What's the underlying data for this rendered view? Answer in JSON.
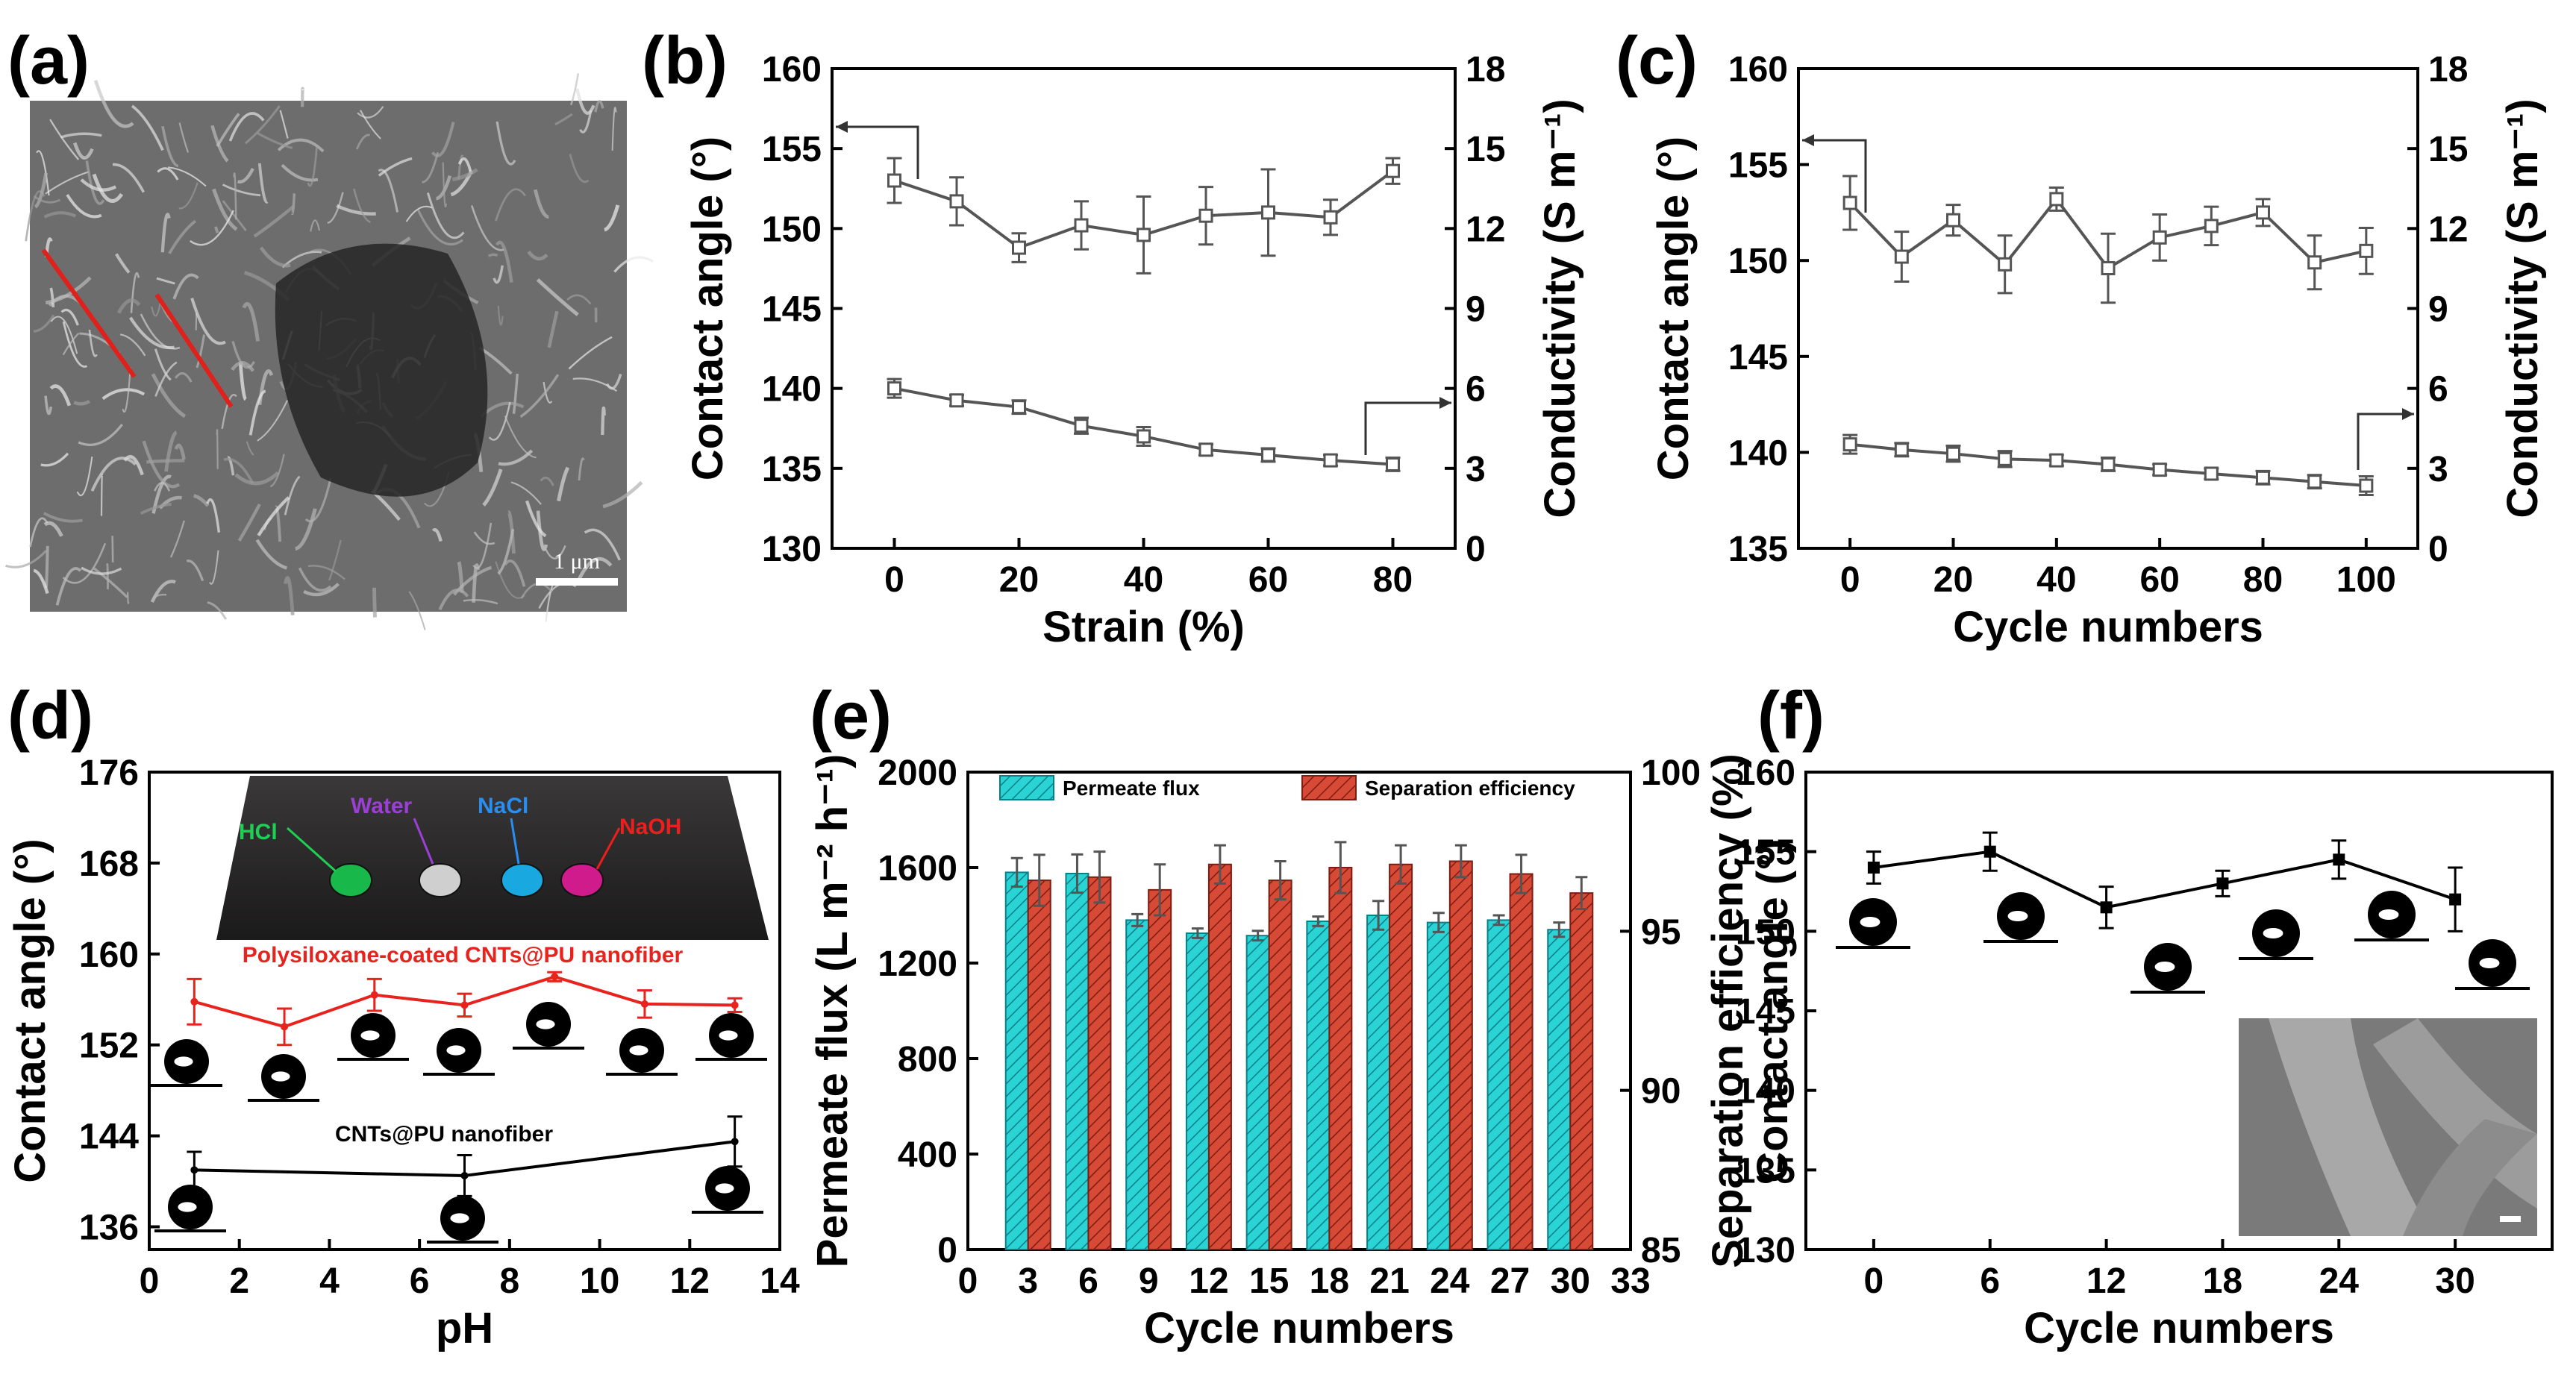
{
  "panel_labels": [
    "(a)",
    "(b)",
    "(c)",
    "(d)",
    "(e)",
    "(f)"
  ],
  "sem_scale_text": "1 μm",
  "chart_data": [
    {
      "id": "b",
      "type": "line",
      "xlabel": "Strain (%)",
      "ylabel": "Contact angle (°)",
      "y2label": "Conductivity (S m⁻¹)",
      "xlim": [
        -10,
        90
      ],
      "ylim": [
        130,
        160
      ],
      "y2lim": [
        0,
        18
      ],
      "xticks": [
        0,
        20,
        40,
        60,
        80
      ],
      "yticks": [
        130,
        135,
        140,
        145,
        150,
        155,
        160
      ],
      "y2ticks": [
        0,
        3,
        6,
        9,
        12,
        15,
        18
      ],
      "series": [
        {
          "name": "Contact angle",
          "axis": "left",
          "marker": "open-square",
          "x": [
            0,
            10,
            20,
            30,
            40,
            50,
            60,
            70,
            80
          ],
          "y": [
            153.0,
            151.7,
            148.8,
            150.2,
            149.6,
            150.8,
            151.0,
            150.7,
            153.6
          ],
          "err": [
            1.4,
            1.5,
            0.9,
            1.5,
            2.4,
            1.8,
            2.7,
            1.1,
            0.8
          ]
        },
        {
          "name": "Conductivity",
          "axis": "right",
          "marker": "open-square",
          "x": [
            0,
            10,
            20,
            30,
            40,
            50,
            60,
            70,
            80
          ],
          "y": [
            6.0,
            5.55,
            5.3,
            4.6,
            4.2,
            3.7,
            3.5,
            3.3,
            3.15
          ],
          "err": [
            0.35,
            0.2,
            0.25,
            0.3,
            0.35,
            0.2,
            0.25,
            0.2,
            0.25
          ]
        }
      ]
    },
    {
      "id": "c",
      "type": "line",
      "xlabel": "Cycle numbers",
      "ylabel": "Contact angle (°)",
      "y2label": "Conductivity (S m⁻¹)",
      "xlim": [
        -10,
        110
      ],
      "ylim": [
        135,
        160
      ],
      "y2lim": [
        0,
        18
      ],
      "xticks": [
        0,
        20,
        40,
        60,
        80,
        100
      ],
      "yticks": [
        135,
        140,
        145,
        150,
        155,
        160
      ],
      "y2ticks": [
        0,
        3,
        6,
        9,
        12,
        15,
        18
      ],
      "series": [
        {
          "name": "Contact angle",
          "axis": "left",
          "marker": "open-square",
          "x": [
            0,
            10,
            20,
            30,
            40,
            50,
            60,
            70,
            80,
            90,
            100
          ],
          "y": [
            153.0,
            150.2,
            152.1,
            149.8,
            153.2,
            149.6,
            151.2,
            151.8,
            152.5,
            149.9,
            150.5
          ],
          "err": [
            1.4,
            1.3,
            0.8,
            1.5,
            0.6,
            1.8,
            1.2,
            1.0,
            0.7,
            1.4,
            1.2
          ]
        },
        {
          "name": "Conductivity",
          "axis": "right",
          "marker": "open-square",
          "x": [
            0,
            10,
            20,
            30,
            40,
            50,
            60,
            70,
            80,
            90,
            100
          ],
          "y": [
            3.9,
            3.7,
            3.55,
            3.35,
            3.3,
            3.15,
            2.95,
            2.8,
            2.65,
            2.5,
            2.35
          ],
          "err": [
            0.35,
            0.25,
            0.3,
            0.3,
            0.2,
            0.25,
            0.2,
            0.2,
            0.25,
            0.25,
            0.35
          ]
        }
      ]
    },
    {
      "id": "d",
      "type": "line",
      "xlabel": "pH",
      "ylabel": "Contact angle (°)",
      "xlim": [
        0,
        14
      ],
      "ylim": [
        134,
        176
      ],
      "xticks": [
        0,
        2,
        4,
        6,
        8,
        10,
        12,
        14
      ],
      "yticks": [
        136,
        144,
        152,
        160,
        168,
        176
      ],
      "inset_labels": [
        "HCl",
        "Water",
        "NaCl",
        "NaOH"
      ],
      "series": [
        {
          "name": "Polysiloxane-coated CNTs@PU nanofiber",
          "color": "#e8231d",
          "x": [
            1,
            3,
            5,
            7,
            9,
            11,
            13
          ],
          "y": [
            155.8,
            153.6,
            156.4,
            155.5,
            158.0,
            155.6,
            155.5
          ],
          "err": [
            2.0,
            1.6,
            1.4,
            1.0,
            0.4,
            1.2,
            0.6
          ]
        },
        {
          "name": "CNTs@PU nanofiber",
          "color": "#000000",
          "x": [
            1,
            7,
            13
          ],
          "y": [
            141.0,
            140.5,
            143.5
          ],
          "err": [
            1.6,
            1.8,
            2.2
          ]
        }
      ]
    },
    {
      "id": "e",
      "type": "bar",
      "xlabel": "Cycle numbers",
      "ylabel": "Permeate flux (L m⁻² h⁻¹)",
      "y2label": "Separation efficiency (%)",
      "xlim": [
        0,
        33
      ],
      "ylim": [
        0,
        2000
      ],
      "y2lim": [
        85,
        100
      ],
      "xticks": [
        0,
        3,
        6,
        9,
        12,
        15,
        18,
        21,
        24,
        27,
        30,
        33
      ],
      "yticks": [
        0,
        400,
        800,
        1200,
        1600,
        2000
      ],
      "y2ticks": [
        85,
        90,
        95,
        100
      ],
      "categories": [
        3,
        6,
        9,
        12,
        15,
        18,
        21,
        24,
        27,
        30
      ],
      "series": [
        {
          "name": "Permeate flux",
          "axis": "left",
          "color": "#2ad4d4",
          "values": [
            1580,
            1575,
            1380,
            1325,
            1315,
            1375,
            1400,
            1370,
            1380,
            1340
          ],
          "err": [
            60,
            80,
            25,
            20,
            20,
            20,
            60,
            40,
            20,
            30
          ]
        },
        {
          "name": "Separation efficiency",
          "axis": "right",
          "color": "#d64a36",
          "values": [
            96.6,
            96.7,
            96.3,
            97.1,
            96.6,
            97.0,
            97.1,
            97.2,
            96.8,
            96.2
          ],
          "err": [
            0.8,
            0.8,
            0.8,
            0.6,
            0.6,
            0.8,
            0.6,
            0.5,
            0.6,
            0.5
          ]
        }
      ]
    },
    {
      "id": "f",
      "type": "line",
      "xlabel": "Cycle numbers",
      "ylabel": "Contact angle (°)",
      "xlim": [
        -3.5,
        35
      ],
      "ylim": [
        130,
        160
      ],
      "xticks": [
        0,
        6,
        12,
        18,
        24,
        30
      ],
      "yticks": [
        130,
        135,
        140,
        145,
        150,
        155,
        160
      ],
      "series": [
        {
          "name": "Contact angle",
          "color": "#000000",
          "marker": "filled-square",
          "x": [
            0,
            6,
            12,
            18,
            24,
            30
          ],
          "y": [
            154.0,
            155.0,
            151.5,
            153.0,
            154.5,
            152.0
          ],
          "err": [
            1.0,
            1.2,
            1.3,
            0.8,
            1.2,
            2.0
          ]
        }
      ]
    }
  ]
}
